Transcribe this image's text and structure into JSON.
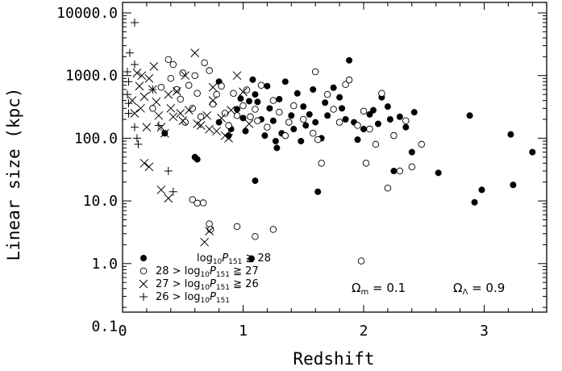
{
  "chart_data": {
    "type": "scatter",
    "title": "",
    "xlabel": "Redshift",
    "ylabel": "Linear size (kpc)",
    "xlim": [
      0,
      3.5
    ],
    "ylim": [
      0.1,
      10000
    ],
    "yscale": "log",
    "x_ticks": [
      0,
      1,
      2,
      3
    ],
    "x_tick_labels": [
      "0",
      "1",
      "2",
      "3"
    ],
    "y_ticks": [
      0.1,
      1,
      10,
      100,
      1000,
      10000
    ],
    "y_tick_labels": [
      "0.1",
      "1.0",
      "10.0",
      "100.0",
      "1000.0",
      "10000.0"
    ],
    "legend_position": "bottom-left",
    "annotations": [
      {
        "label": "Ωm = 0.1",
        "text": "Ω",
        "sub": "m",
        "rest": " = 0.1"
      },
      {
        "label": "ΩΛ = 0.9",
        "text": "Ω",
        "sub": "Λ",
        "rest": " = 0.9"
      }
    ],
    "series": [
      {
        "name": "log10P151 ≥ 28",
        "legend_parts": [
          "",
          "≧ 28"
        ],
        "marker": "filled-circle",
        "points": [
          [
            1.07,
            1.2
          ],
          [
            1.1,
            21
          ],
          [
            0.35,
            120
          ],
          [
            0.6,
            50
          ],
          [
            0.62,
            46
          ],
          [
            0.8,
            800
          ],
          [
            0.8,
            180
          ],
          [
            0.88,
            110
          ],
          [
            0.9,
            140
          ],
          [
            0.95,
            290
          ],
          [
            0.98,
            430
          ],
          [
            1.0,
            210
          ],
          [
            1.02,
            130
          ],
          [
            1.05,
            390
          ],
          [
            1.08,
            860
          ],
          [
            1.1,
            500
          ],
          [
            1.12,
            380
          ],
          [
            1.15,
            200
          ],
          [
            1.18,
            110
          ],
          [
            1.2,
            680
          ],
          [
            1.22,
            300
          ],
          [
            1.25,
            190
          ],
          [
            1.27,
            90
          ],
          [
            1.28,
            70
          ],
          [
            1.3,
            420
          ],
          [
            1.32,
            120
          ],
          [
            1.35,
            800
          ],
          [
            1.4,
            230
          ],
          [
            1.42,
            140
          ],
          [
            1.45,
            520
          ],
          [
            1.48,
            90
          ],
          [
            1.5,
            320
          ],
          [
            1.52,
            160
          ],
          [
            1.55,
            240
          ],
          [
            1.58,
            600
          ],
          [
            1.6,
            180
          ],
          [
            1.62,
            14
          ],
          [
            1.65,
            100
          ],
          [
            1.68,
            370
          ],
          [
            1.7,
            230
          ],
          [
            1.75,
            640
          ],
          [
            1.8,
            450
          ],
          [
            1.82,
            300
          ],
          [
            1.85,
            200
          ],
          [
            1.88,
            1750
          ],
          [
            1.92,
            180
          ],
          [
            1.95,
            95
          ],
          [
            2.0,
            140
          ],
          [
            2.05,
            240
          ],
          [
            2.08,
            280
          ],
          [
            2.12,
            170
          ],
          [
            2.15,
            450
          ],
          [
            2.2,
            320
          ],
          [
            2.22,
            200
          ],
          [
            2.25,
            30
          ],
          [
            2.3,
            220
          ],
          [
            2.35,
            150
          ],
          [
            2.4,
            60
          ],
          [
            2.42,
            260
          ],
          [
            2.62,
            28
          ],
          [
            2.88,
            230
          ],
          [
            2.92,
            9.5
          ],
          [
            2.98,
            15
          ],
          [
            3.22,
            115
          ],
          [
            3.24,
            18
          ],
          [
            3.4,
            60
          ]
        ]
      },
      {
        "name": "28 > log10P151 ≥ 27",
        "legend_parts": [
          "28 >",
          "≧ 27"
        ],
        "marker": "open-circle",
        "points": [
          [
            0.58,
            10.5
          ],
          [
            0.62,
            9.2
          ],
          [
            0.67,
            9.3
          ],
          [
            0.72,
            4.3
          ],
          [
            0.73,
            3.5
          ],
          [
            0.95,
            3.9
          ],
          [
            1.1,
            2.7
          ],
          [
            1.25,
            3.5
          ],
          [
            1.98,
            1.1
          ],
          [
            0.38,
            1800
          ],
          [
            0.42,
            1500
          ],
          [
            0.45,
            600
          ],
          [
            0.48,
            420
          ],
          [
            0.5,
            1100
          ],
          [
            0.52,
            180
          ],
          [
            0.55,
            700
          ],
          [
            0.58,
            300
          ],
          [
            0.6,
            1000
          ],
          [
            0.62,
            520
          ],
          [
            0.65,
            220
          ],
          [
            0.68,
            1600
          ],
          [
            0.72,
            1200
          ],
          [
            0.75,
            350
          ],
          [
            0.78,
            500
          ],
          [
            0.82,
            680
          ],
          [
            0.85,
            250
          ],
          [
            0.88,
            160
          ],
          [
            0.92,
            520
          ],
          [
            0.95,
            230
          ],
          [
            1.0,
            330
          ],
          [
            1.03,
            590
          ],
          [
            1.06,
            220
          ],
          [
            1.1,
            290
          ],
          [
            1.12,
            190
          ],
          [
            1.15,
            700
          ],
          [
            1.2,
            150
          ],
          [
            1.25,
            400
          ],
          [
            1.3,
            260
          ],
          [
            1.35,
            110
          ],
          [
            1.38,
            180
          ],
          [
            1.42,
            330
          ],
          [
            1.5,
            200
          ],
          [
            1.58,
            120
          ],
          [
            1.6,
            1150
          ],
          [
            1.62,
            95
          ],
          [
            1.65,
            40
          ],
          [
            1.7,
            500
          ],
          [
            1.75,
            290
          ],
          [
            1.8,
            180
          ],
          [
            1.85,
            720
          ],
          [
            1.88,
            850
          ],
          [
            1.95,
            160
          ],
          [
            2.0,
            270
          ],
          [
            2.02,
            40
          ],
          [
            2.05,
            140
          ],
          [
            2.1,
            80
          ],
          [
            2.15,
            520
          ],
          [
            2.2,
            16
          ],
          [
            2.25,
            110
          ],
          [
            2.3,
            30
          ],
          [
            2.35,
            190
          ],
          [
            2.4,
            35
          ],
          [
            2.48,
            80
          ],
          [
            0.25,
            300
          ],
          [
            0.32,
            650
          ],
          [
            0.4,
            900
          ]
        ]
      },
      {
        "name": "27 > log10P151 ≥ 26",
        "legend_parts": [
          "27 >",
          "≧ 26"
        ],
        "marker": "x",
        "points": [
          [
            0.08,
            400
          ],
          [
            0.1,
            250
          ],
          [
            0.12,
            1100
          ],
          [
            0.14,
            680
          ],
          [
            0.16,
            1000
          ],
          [
            0.18,
            460
          ],
          [
            0.2,
            150
          ],
          [
            0.22,
            900
          ],
          [
            0.25,
            600
          ],
          [
            0.28,
            380
          ],
          [
            0.3,
            230
          ],
          [
            0.32,
            150
          ],
          [
            0.35,
            120
          ],
          [
            0.38,
            500
          ],
          [
            0.4,
            300
          ],
          [
            0.42,
            220
          ],
          [
            0.45,
            560
          ],
          [
            0.48,
            250
          ],
          [
            0.5,
            190
          ],
          [
            0.52,
            1000
          ],
          [
            0.55,
            280
          ],
          [
            0.6,
            2300
          ],
          [
            0.62,
            170
          ],
          [
            0.65,
            160
          ],
          [
            0.7,
            230
          ],
          [
            0.72,
            140
          ],
          [
            0.75,
            400
          ],
          [
            0.78,
            130
          ],
          [
            0.82,
            210
          ],
          [
            0.85,
            110
          ],
          [
            0.88,
            100
          ],
          [
            0.9,
            280
          ],
          [
            0.95,
            1000
          ],
          [
            1.0,
            550
          ],
          [
            1.05,
            170
          ],
          [
            0.75,
            650
          ],
          [
            0.68,
            2.2
          ],
          [
            0.72,
            3.3
          ],
          [
            0.32,
            15
          ],
          [
            0.38,
            11
          ],
          [
            0.18,
            40
          ],
          [
            0.22,
            35
          ],
          [
            0.15,
            300
          ],
          [
            0.26,
            1400
          ]
        ]
      },
      {
        "name": "26 > log10P151",
        "legend_parts": [
          "26 >",
          ""
        ],
        "marker": "plus",
        "points": [
          [
            0.1,
            7000
          ],
          [
            0.06,
            2300
          ],
          [
            0.1,
            1500
          ],
          [
            0.04,
            1150
          ],
          [
            0.05,
            800
          ],
          [
            0.04,
            500
          ],
          [
            0.05,
            360
          ],
          [
            0.05,
            250
          ],
          [
            0.1,
            150
          ],
          [
            0.12,
            100
          ],
          [
            0.13,
            80
          ],
          [
            0.25,
            600
          ],
          [
            0.3,
            160
          ],
          [
            0.38,
            30
          ],
          [
            0.42,
            14
          ]
        ]
      }
    ]
  }
}
